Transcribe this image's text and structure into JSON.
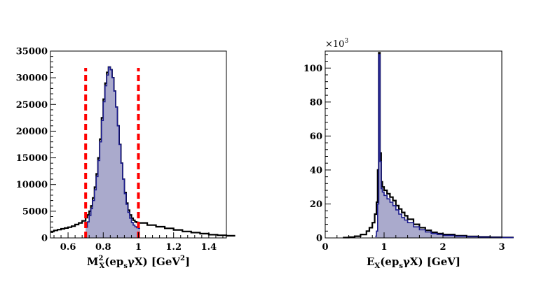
{
  "chart_data": [
    {
      "type": "histogram",
      "xlabel": {
        "main": "M",
        "sup": "2",
        "sub": "X",
        "rest": "(ep",
        "rest_sub": "s",
        "rest2": "γX) [GeV",
        "unit_sup": "2",
        "close": "]"
      },
      "ylabel": "",
      "xlim": [
        0.5,
        1.5
      ],
      "ylim": [
        0,
        35000
      ],
      "x_ticks": [
        "0.6",
        "0.8",
        "1",
        "1.2",
        "1.4"
      ],
      "x_tick_values": [
        0.6,
        0.8,
        1.0,
        1.2,
        1.4
      ],
      "y_ticks": [
        "0",
        "5000",
        "10000",
        "15000",
        "20000",
        "25000",
        "30000",
        "35000"
      ],
      "y_tick_values": [
        0,
        5000,
        10000,
        15000,
        20000,
        25000,
        30000,
        35000
      ],
      "cut_lines": [
        0.7,
        1.0
      ],
      "cut_line_color": "#ff0000",
      "series": [
        {
          "style": "black-step",
          "color": "#000000",
          "x": [
            0.5,
            0.52,
            0.54,
            0.56,
            0.58,
            0.6,
            0.62,
            0.64,
            0.66,
            0.68,
            0.7,
            0.71,
            0.72,
            0.73,
            0.74,
            0.75,
            0.76,
            0.77,
            0.78,
            0.79,
            0.8,
            0.81,
            0.82,
            0.83,
            0.84,
            0.85,
            0.86,
            0.87,
            0.88,
            0.89,
            0.9,
            0.91,
            0.92,
            0.93,
            0.94,
            0.95,
            0.96,
            0.97,
            0.98,
            0.99,
            1.0,
            1.05,
            1.1,
            1.15,
            1.2,
            1.25,
            1.3,
            1.35,
            1.4,
            1.45,
            1.5
          ],
          "y": [
            1200,
            1400,
            1550,
            1700,
            1850,
            2000,
            2200,
            2500,
            2800,
            3200,
            3800,
            4300,
            5000,
            6000,
            7500,
            9500,
            12000,
            15000,
            18500,
            22500,
            26000,
            29000,
            31000,
            32000,
            31500,
            30000,
            27500,
            24500,
            21000,
            17500,
            14000,
            11000,
            8500,
            6500,
            5200,
            4300,
            3700,
            3300,
            3000,
            2900,
            2800,
            2400,
            2100,
            1800,
            1500,
            1200,
            1000,
            800,
            600,
            500,
            400
          ]
        },
        {
          "style": "blue-filled",
          "color": "#1a1a8c",
          "fill": "#aaaacc",
          "x": [
            0.7,
            0.71,
            0.72,
            0.73,
            0.74,
            0.75,
            0.76,
            0.77,
            0.78,
            0.79,
            0.8,
            0.81,
            0.82,
            0.83,
            0.84,
            0.85,
            0.86,
            0.87,
            0.88,
            0.89,
            0.9,
            0.91,
            0.92,
            0.93,
            0.94,
            0.95,
            0.96,
            0.97,
            0.98,
            0.99,
            1.0
          ],
          "y": [
            2000,
            3000,
            4200,
            5500,
            7000,
            9000,
            11500,
            14500,
            18000,
            22000,
            25500,
            28500,
            30500,
            32000,
            31500,
            30000,
            27500,
            24500,
            21000,
            17500,
            14000,
            11000,
            8300,
            6300,
            4800,
            3700,
            2900,
            2400,
            2100,
            1900,
            1800
          ]
        }
      ]
    },
    {
      "type": "histogram",
      "multiplier": {
        "base": "×10",
        "exp": "3"
      },
      "xlabel": {
        "main": "E",
        "sub": "X",
        "rest": "(ep",
        "rest_sub": "s",
        "rest2": "γX) [GeV]"
      },
      "ylabel": "",
      "xlim": [
        0,
        3
      ],
      "ylim": [
        0,
        110
      ],
      "x_ticks": [
        "0",
        "1",
        "2",
        "3"
      ],
      "x_tick_values": [
        0,
        1,
        2,
        3
      ],
      "y_ticks": [
        "0",
        "20",
        "40",
        "60",
        "80",
        "100"
      ],
      "y_tick_values": [
        0,
        20,
        40,
        60,
        80,
        100
      ],
      "series": [
        {
          "style": "black-step",
          "color": "#000000",
          "x": [
            0.3,
            0.4,
            0.5,
            0.6,
            0.7,
            0.75,
            0.8,
            0.84,
            0.87,
            0.89,
            0.91,
            0.93,
            0.95,
            0.97,
            1.0,
            1.05,
            1.1,
            1.15,
            1.2,
            1.25,
            1.3,
            1.35,
            1.4,
            1.5,
            1.6,
            1.7,
            1.8,
            1.9,
            2.0,
            2.2,
            2.4,
            2.6,
            2.8,
            3.0
          ],
          "y": [
            0.2,
            0.5,
            1,
            2,
            4,
            6,
            9,
            14,
            21,
            40,
            109,
            50,
            33,
            30,
            28,
            26,
            24,
            22,
            19,
            17,
            15,
            13,
            11,
            8,
            6,
            4.5,
            3.3,
            2.5,
            2,
            1.3,
            0.9,
            0.6,
            0.4,
            0.3
          ]
        },
        {
          "style": "blue-filled",
          "color": "#1a1a8c",
          "fill": "#aaaacc",
          "x": [
            0.85,
            0.87,
            0.89,
            0.91,
            0.93,
            0.95,
            0.97,
            1.0,
            1.05,
            1.1,
            1.15,
            1.2,
            1.25,
            1.3,
            1.35,
            1.4,
            1.5,
            1.6,
            1.7,
            1.8,
            1.9,
            2.0,
            2.2,
            2.4,
            2.6,
            2.8,
            3.0
          ],
          "y": [
            1,
            4,
            20,
            108,
            45,
            29,
            27,
            25,
            23,
            21,
            19,
            16.5,
            14,
            12,
            10.5,
            9,
            6.5,
            4.8,
            3.5,
            2.6,
            2,
            1.5,
            1,
            0.7,
            0.5,
            0.3,
            0.2
          ]
        }
      ]
    }
  ]
}
